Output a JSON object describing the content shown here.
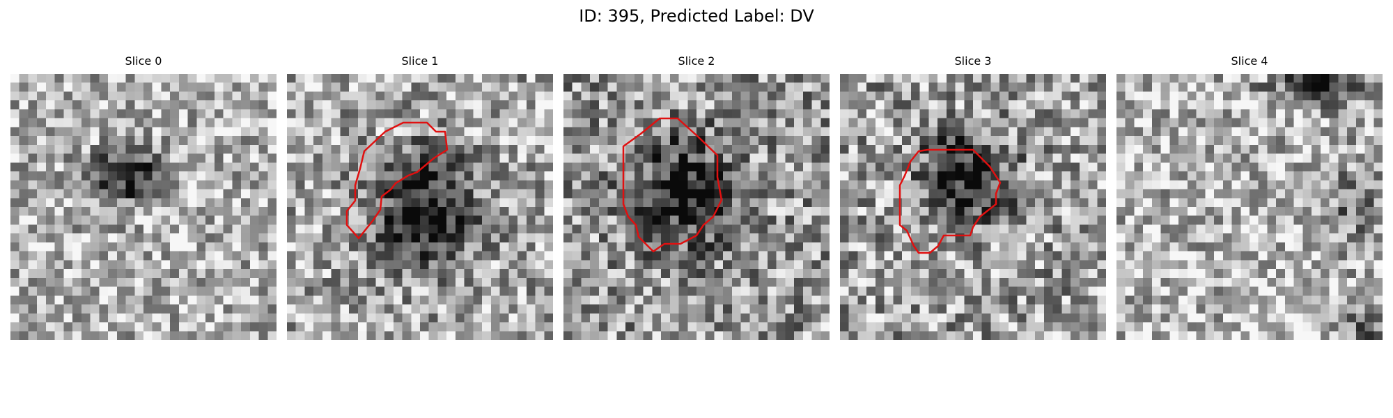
{
  "figure": {
    "title": "ID: 395, Predicted Label: DV"
  },
  "panels": [
    {
      "title": "Slice 0",
      "has_contour": false,
      "contour_color": "#e01010"
    },
    {
      "title": "Slice 1",
      "has_contour": true,
      "contour_color": "#e01010"
    },
    {
      "title": "Slice 2",
      "has_contour": true,
      "contour_color": "#e01010"
    },
    {
      "title": "Slice 3",
      "has_contour": true,
      "contour_color": "#e01010"
    },
    {
      "title": "Slice 4",
      "has_contour": false,
      "contour_color": "#e01010"
    }
  ],
  "colors": {
    "background": "#ffffff",
    "contour": "#e01010",
    "colormap": "grayscale"
  }
}
